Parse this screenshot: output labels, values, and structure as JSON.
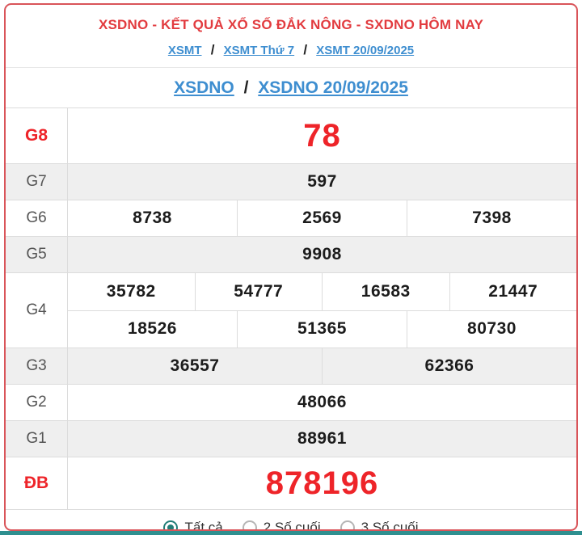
{
  "colors": {
    "title_red": "#e23b3f",
    "value_red": "#ee2429",
    "link_blue": "#3e8ed0",
    "border_red": "#d95459",
    "row_alt_bg": "#efefef",
    "radio_teal": "#217d77",
    "bottom_bar_teal": "#2e8f8f"
  },
  "header": {
    "title": "XSDNO - KẾT QUẢ XỔ SỐ ĐẮK NÔNG - SXDNO HÔM NAY",
    "breadcrumb": {
      "separator": "/",
      "items": [
        {
          "label": "XSMT"
        },
        {
          "label": "XSMT Thứ 7"
        },
        {
          "label": "XSMT 20/09/2025"
        }
      ]
    },
    "subtitle": {
      "separator": "/",
      "items": [
        {
          "label": "XSDNO"
        },
        {
          "label": "XSDNO 20/09/2025"
        }
      ]
    }
  },
  "results": {
    "rows": [
      {
        "label": "G8",
        "highlight": true,
        "values": [
          [
            "78"
          ]
        ]
      },
      {
        "label": "G7",
        "highlight": false,
        "values": [
          [
            "597"
          ]
        ]
      },
      {
        "label": "G6",
        "highlight": false,
        "values": [
          [
            "8738",
            "2569",
            "7398"
          ]
        ]
      },
      {
        "label": "G5",
        "highlight": false,
        "values": [
          [
            "9908"
          ]
        ]
      },
      {
        "label": "G4",
        "highlight": false,
        "values": [
          [
            "35782",
            "54777",
            "16583",
            "21447"
          ],
          [
            "18526",
            "51365",
            "80730"
          ]
        ]
      },
      {
        "label": "G3",
        "highlight": false,
        "values": [
          [
            "36557",
            "62366"
          ]
        ]
      },
      {
        "label": "G2",
        "highlight": false,
        "values": [
          [
            "48066"
          ]
        ]
      },
      {
        "label": "G1",
        "highlight": false,
        "values": [
          [
            "88961"
          ]
        ]
      },
      {
        "label": "ĐB",
        "highlight": true,
        "values": [
          [
            "878196"
          ]
        ]
      }
    ]
  },
  "filter": {
    "options": [
      {
        "label": "Tất cả",
        "selected": true
      },
      {
        "label": "2 Số cuối",
        "selected": false
      },
      {
        "label": "3 Số cuối",
        "selected": false
      }
    ]
  }
}
